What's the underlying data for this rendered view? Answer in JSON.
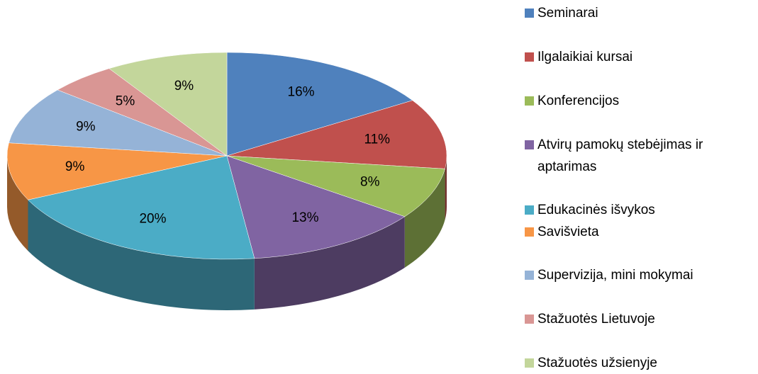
{
  "chart_data": {
    "type": "pie",
    "categories": [
      "Seminarai",
      "Ilgalaikiai kursai",
      "Konferencijos",
      "Atvirų pamokų stebėjimas ir aptarimas",
      "Edukacinės išvykos",
      "Savišvieta",
      "Supervizija, mini mokymai",
      "Stažuotės Lietuvoje",
      "Stažuotės užsienyje"
    ],
    "values": [
      16,
      11,
      8,
      13,
      20,
      9,
      9,
      5,
      9
    ],
    "value_labels": [
      "16%",
      "11%",
      "8%",
      "13%",
      "20%",
      "9%",
      "9%",
      "5%",
      "9%"
    ],
    "colors": [
      "#4f81bd",
      "#c0504d",
      "#9bbb59",
      "#8064a2",
      "#4bacc6",
      "#f79646",
      "#95b3d7",
      "#d99694",
      "#c3d69b"
    ],
    "legend": "right"
  }
}
